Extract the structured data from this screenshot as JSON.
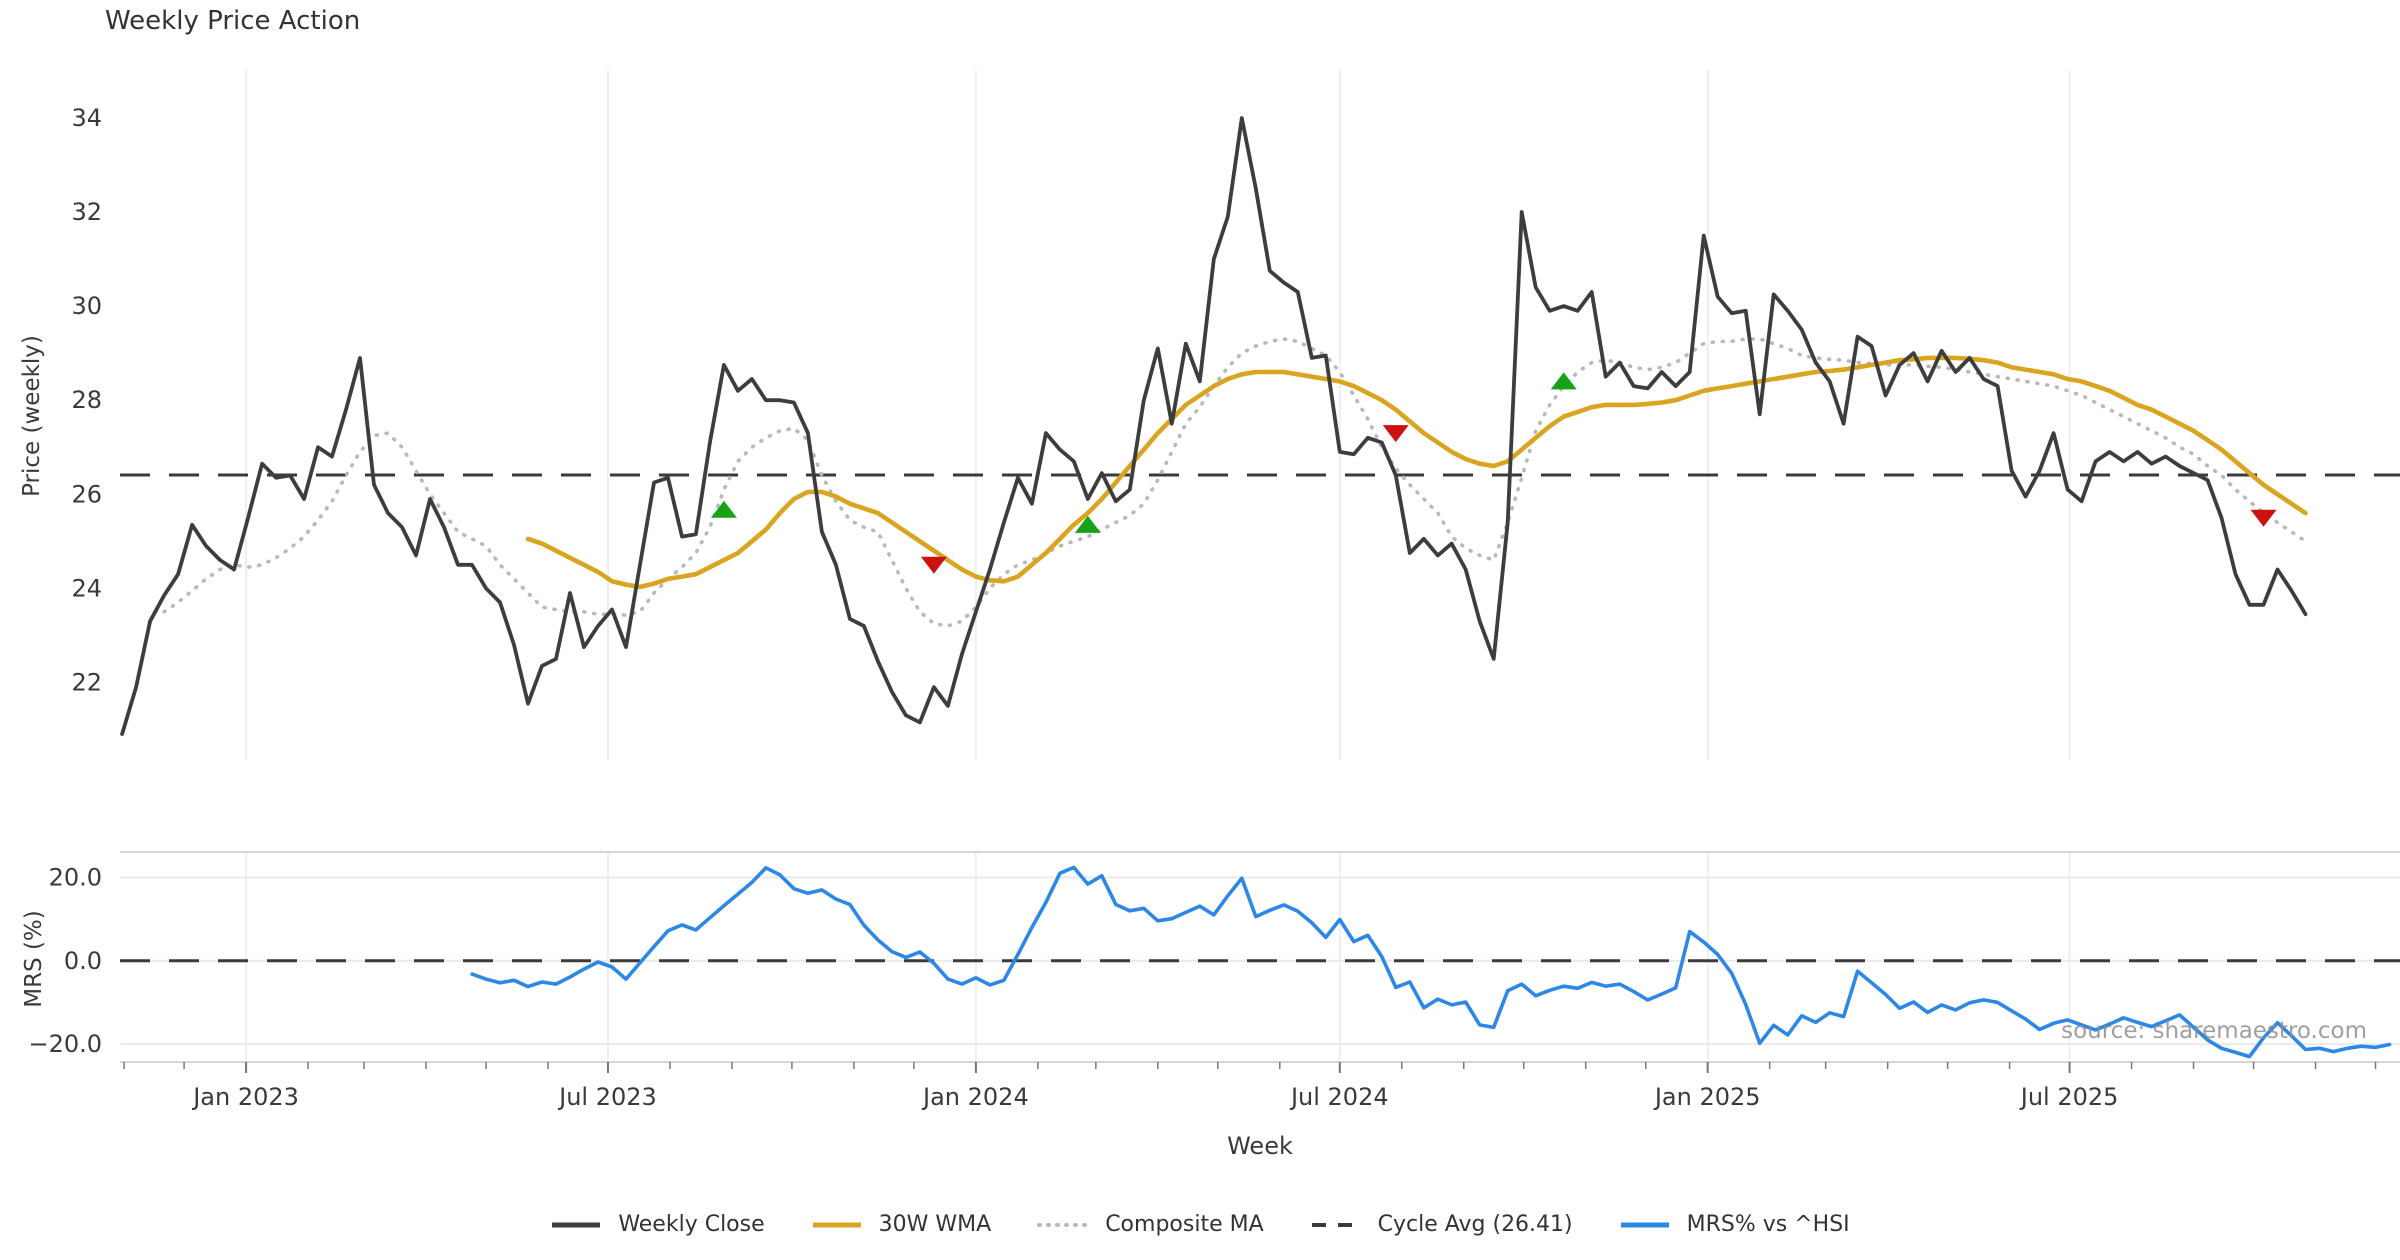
{
  "title": "Weekly Price Action",
  "watermark": "source: sharemaestro.com",
  "xlabel": "Week",
  "ylabel_price": "Price (weekly)",
  "ylabel_mrs": "MRS (%)",
  "colors": {
    "close": "#3d3d3d",
    "wma": "#d9a521",
    "composite": "#b9b9b9",
    "cycle_dash": "#3a3a3a",
    "mrs_blue": "#2d87e6",
    "marker_up_green": "#17a317",
    "marker_down_red": "#cc1111",
    "gridline": "#efefef",
    "spine": "#d5d5d5",
    "tick": "#777777",
    "text": "#3a3a3a"
  },
  "legend": [
    {
      "label": "Weekly Close",
      "swatch": "solid-dark"
    },
    {
      "label": "30W WMA",
      "swatch": "solid-gold"
    },
    {
      "label": "Composite MA",
      "swatch": "dotted-gray"
    },
    {
      "label": "Cycle Avg (26.41)",
      "swatch": "dashed-dark"
    },
    {
      "label": "MRS% vs ^HSI",
      "swatch": "solid-blue"
    }
  ],
  "chart_data": {
    "type": "line",
    "title": "Weekly Price Action",
    "xlabel": "Week",
    "x_origin_date": "2022-10-31",
    "x_step": "1 week",
    "xlim_weeks": [
      -0.15,
      162.75
    ],
    "xticks": [
      {
        "date": "2023-01-01",
        "label": "Jan 2023"
      },
      {
        "date": "2023-07-01",
        "label": "Jul 2023"
      },
      {
        "date": "2024-01-01",
        "label": "Jan 2024"
      },
      {
        "date": "2024-07-01",
        "label": "Jul 2024"
      },
      {
        "date": "2025-01-01",
        "label": "Jan 2025"
      },
      {
        "date": "2025-07-01",
        "label": "Jul 2025"
      }
    ],
    "minor_tick_months": true,
    "price_panel": {
      "ylabel": "Price (weekly)",
      "ylim": [
        20.35,
        35.02
      ],
      "yticks": [
        22,
        24,
        26,
        28,
        30,
        32,
        34
      ],
      "cycle_avg": 26.41,
      "weekly_close": {
        "start_week": 0,
        "values": [
          20.9,
          21.9,
          23.3,
          23.85,
          24.3,
          25.35,
          24.9,
          24.6,
          24.4,
          25.5,
          26.65,
          26.35,
          26.4,
          25.9,
          27.0,
          26.8,
          27.8,
          28.9,
          26.2,
          25.6,
          25.3,
          24.7,
          25.9,
          25.3,
          24.5,
          24.5,
          24.0,
          23.7,
          22.8,
          21.55,
          22.35,
          22.5,
          23.9,
          22.75,
          23.2,
          23.55,
          22.75,
          24.5,
          26.25,
          26.35,
          25.1,
          25.15,
          27.1,
          28.75,
          28.2,
          28.45,
          28.0,
          28.0,
          27.95,
          27.3,
          25.2,
          24.5,
          23.35,
          23.2,
          22.45,
          21.8,
          21.3,
          21.15,
          21.9,
          21.5,
          22.6,
          23.5,
          24.4,
          25.4,
          26.35,
          25.8,
          27.3,
          26.95,
          26.7,
          25.9,
          26.45,
          25.85,
          26.1,
          28.0,
          29.1,
          27.5,
          29.2,
          28.4,
          31.0,
          31.9,
          34.0,
          32.5,
          30.75,
          30.5,
          30.3,
          28.9,
          28.95,
          26.9,
          26.85,
          27.2,
          27.1,
          26.4,
          24.75,
          25.05,
          24.7,
          24.95,
          24.4,
          23.3,
          22.5,
          25.4,
          32.0,
          30.4,
          29.9,
          30.0,
          29.9,
          30.3,
          28.5,
          28.8,
          28.3,
          28.25,
          28.6,
          28.3,
          28.6,
          31.5,
          30.2,
          29.85,
          29.9,
          27.7,
          30.25,
          29.9,
          29.5,
          28.8,
          28.4,
          27.5,
          29.35,
          29.15,
          28.1,
          28.75,
          29.0,
          28.4,
          29.05,
          28.6,
          28.9,
          28.45,
          28.3,
          26.5,
          25.95,
          26.5,
          27.3,
          26.1,
          25.85,
          26.7,
          26.9,
          26.7,
          26.9,
          26.65,
          26.8,
          26.6,
          26.45,
          26.3,
          25.5,
          24.3,
          23.65,
          23.65,
          24.4,
          23.95,
          23.45
        ]
      },
      "wma30": {
        "start_week": 29,
        "values": [
          25.05,
          24.95,
          24.8,
          24.65,
          24.5,
          24.35,
          24.15,
          24.08,
          24.03,
          24.1,
          24.2,
          24.25,
          24.3,
          24.45,
          24.6,
          24.75,
          25.0,
          25.25,
          25.6,
          25.9,
          26.05,
          26.05,
          25.95,
          25.8,
          25.7,
          25.6,
          25.4,
          25.2,
          25.0,
          24.8,
          24.6,
          24.4,
          24.25,
          24.17,
          24.15,
          24.25,
          24.5,
          24.75,
          25.05,
          25.35,
          25.6,
          25.9,
          26.25,
          26.6,
          26.95,
          27.3,
          27.6,
          27.9,
          28.1,
          28.3,
          28.45,
          28.55,
          28.6,
          28.6,
          28.6,
          28.55,
          28.5,
          28.45,
          28.4,
          28.3,
          28.15,
          28.0,
          27.8,
          27.55,
          27.3,
          27.1,
          26.9,
          26.75,
          26.65,
          26.6,
          26.7,
          26.95,
          27.2,
          27.45,
          27.65,
          27.75,
          27.85,
          27.9,
          27.9,
          27.9,
          27.92,
          27.95,
          28.0,
          28.1,
          28.2,
          28.25,
          28.3,
          28.35,
          28.4,
          28.45,
          28.5,
          28.55,
          28.6,
          28.62,
          28.65,
          28.7,
          28.75,
          28.8,
          28.85,
          28.87,
          28.9,
          28.9,
          28.9,
          28.88,
          28.85,
          28.8,
          28.7,
          28.65,
          28.6,
          28.55,
          28.45,
          28.4,
          28.3,
          28.2,
          28.05,
          27.9,
          27.8,
          27.65,
          27.5,
          27.35,
          27.15,
          26.95,
          26.7,
          26.45,
          26.2,
          26.0,
          25.8,
          25.6
        ]
      },
      "composite_ma": {
        "start_week": 3,
        "values": [
          23.5,
          23.7,
          23.95,
          24.2,
          24.4,
          24.5,
          24.45,
          24.5,
          24.65,
          24.85,
          25.1,
          25.45,
          25.85,
          26.4,
          26.9,
          27.25,
          27.3,
          27.0,
          26.5,
          26.0,
          25.6,
          25.2,
          25.05,
          24.9,
          24.5,
          24.2,
          23.9,
          23.6,
          23.55,
          23.5,
          23.5,
          23.45,
          23.45,
          23.43,
          23.5,
          23.9,
          24.2,
          24.45,
          24.75,
          25.3,
          26.1,
          26.7,
          27.0,
          27.2,
          27.35,
          27.4,
          27.15,
          26.4,
          25.85,
          25.45,
          25.3,
          25.2,
          24.6,
          24.0,
          23.5,
          23.25,
          23.2,
          23.3,
          23.6,
          24.0,
          24.3,
          24.5,
          24.6,
          24.75,
          24.9,
          25.0,
          25.1,
          25.25,
          25.4,
          25.55,
          25.8,
          26.3,
          26.9,
          27.5,
          27.85,
          28.3,
          28.7,
          29.0,
          29.15,
          29.25,
          29.3,
          29.25,
          29.1,
          28.95,
          28.6,
          28.1,
          27.6,
          27.0,
          26.55,
          26.2,
          25.9,
          25.6,
          25.1,
          24.85,
          24.7,
          24.6,
          25.4,
          26.35,
          27.35,
          27.9,
          28.3,
          28.6,
          28.8,
          28.85,
          28.8,
          28.7,
          28.65,
          28.7,
          28.8,
          29.0,
          29.2,
          29.25,
          29.25,
          29.3,
          29.3,
          29.2,
          29.1,
          28.95,
          28.9,
          28.87,
          28.85,
          28.8,
          28.78,
          28.75,
          28.75,
          28.75,
          28.72,
          28.7,
          28.65,
          28.6,
          28.55,
          28.5,
          28.45,
          28.4,
          28.35,
          28.3,
          28.2,
          28.1,
          27.95,
          27.8,
          27.65,
          27.5,
          27.35,
          27.2,
          27.0,
          26.85,
          26.6,
          26.4,
          26.1,
          25.85,
          25.6,
          25.4,
          25.2,
          25.0
        ]
      },
      "signal_markers": [
        {
          "week": 43,
          "value": 25.67,
          "type": "up"
        },
        {
          "week": 58,
          "value": 24.5,
          "type": "down"
        },
        {
          "week": 69,
          "value": 25.35,
          "type": "up"
        },
        {
          "week": 91,
          "value": 27.3,
          "type": "down"
        },
        {
          "week": 103,
          "value": 28.4,
          "type": "up"
        },
        {
          "week": 153,
          "value": 25.5,
          "type": "down"
        }
      ]
    },
    "mrs_panel": {
      "ylabel": "MRS (%)",
      "ylim": [
        -24.3,
        26.1
      ],
      "yticks": [
        {
          "v": 20,
          "label": "20.0"
        },
        {
          "v": 0,
          "label": "0.0"
        },
        {
          "v": -20,
          "label": "−20.0"
        }
      ],
      "zero_line": 0,
      "mrs_vs_hsi": {
        "start_week": 25,
        "values": [
          -3.2,
          -4.4,
          -5.3,
          -4.7,
          -6.2,
          -5.1,
          -5.6,
          -3.9,
          -2.0,
          -0.3,
          -1.5,
          -4.4,
          -0.5,
          3.4,
          7.2,
          8.6,
          7.4,
          10.3,
          13.2,
          16.0,
          18.8,
          22.3,
          20.6,
          17.3,
          16.2,
          17.0,
          14.8,
          13.5,
          8.5,
          5.0,
          2.2,
          0.8,
          2.1,
          -0.6,
          -4.4,
          -5.6,
          -4.1,
          -5.8,
          -4.7,
          1.5,
          8.0,
          14.0,
          21.0,
          22.4,
          18.4,
          20.4,
          13.5,
          12.0,
          12.6,
          9.6,
          10.1,
          11.6,
          13.1,
          11.0,
          15.6,
          19.8,
          10.6,
          12.1,
          13.4,
          11.9,
          9.1,
          5.6,
          9.9,
          4.6,
          6.1,
          1.0,
          -6.4,
          -5.1,
          -11.3,
          -9.2,
          -10.6,
          -9.9,
          -15.4,
          -16.0,
          -7.2,
          -5.6,
          -8.4,
          -7.1,
          -6.1,
          -6.6,
          -5.2,
          -6.1,
          -5.6,
          -7.4,
          -9.4,
          -8.0,
          -6.5,
          7.0,
          4.5,
          1.5,
          -3.0,
          -10.5,
          -19.8,
          -15.5,
          -17.8,
          -13.2,
          -14.8,
          -12.5,
          -13.4,
          -2.5,
          -5.3,
          -8.1,
          -11.4,
          -9.9,
          -12.4,
          -10.6,
          -11.8,
          -10.1,
          -9.4,
          -10.0,
          -12.0,
          -14.0,
          -16.5,
          -15.0,
          -14.2,
          -15.4,
          -16.6,
          -15.2,
          -13.7,
          -14.8,
          -15.8,
          -14.4,
          -13.0,
          -16.0,
          -19.0,
          -21.0,
          -22.0,
          -23.0,
          -18.5,
          -14.9,
          -18.0,
          -21.3,
          -21.0,
          -21.8,
          -21.0,
          -20.5,
          -20.8,
          -20.1
        ]
      }
    }
  }
}
